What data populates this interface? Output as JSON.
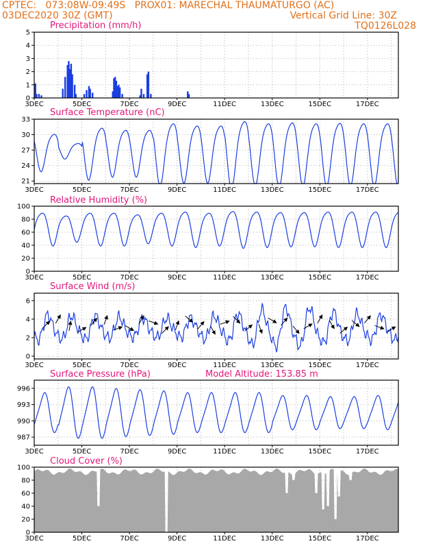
{
  "header": {
    "line1_left": "CPTEC:   073:08W-09:49S   PROX01: MARECHAL THAUMATURGO (AC)",
    "line2_left": "03DEC2020 30Z (GMT)",
    "line2_right": "Vertical Grid Line: 30Z",
    "line3_right": "TQ0126L028"
  },
  "x_tick_labels": [
    "3DEC",
    "5DEC",
    "7DEC",
    "9DEC",
    "11DEC",
    "13DEC",
    "15DEC",
    "17DEC"
  ],
  "chart_data": [
    {
      "type": "bar",
      "title": "Precipitation (mm/h)",
      "ylim": [
        0,
        5
      ],
      "yticks": [
        0,
        1,
        2,
        3,
        4,
        5
      ],
      "color": "#1a3ee0",
      "x_days": [
        0.05,
        0.1,
        0.2,
        0.3,
        1.2,
        1.3,
        1.4,
        1.45,
        1.5,
        1.55,
        1.6,
        1.7,
        1.75,
        2.1,
        2.2,
        2.3,
        2.35,
        2.45,
        3.3,
        3.35,
        3.4,
        3.45,
        3.5,
        3.55,
        3.6,
        3.7,
        4.45,
        4.5,
        4.6,
        4.75,
        4.8,
        4.9,
        6.45,
        6.5
      ],
      "values": [
        1.1,
        0.3,
        0.3,
        0.2,
        0.7,
        1.6,
        2.5,
        2.8,
        2.2,
        2.6,
        1.8,
        1.0,
        0.3,
        0.3,
        0.6,
        0.9,
        0.7,
        0.4,
        0.5,
        1.5,
        1.6,
        1.3,
        0.9,
        1.0,
        0.8,
        0.3,
        0.2,
        0.7,
        0.3,
        1.8,
        2.0,
        0.3,
        0.5,
        0.3
      ]
    },
    {
      "type": "line",
      "title": "Surface Temperature (nC)",
      "ylim": [
        20.5,
        33
      ],
      "yticks": [
        21,
        24,
        27,
        30,
        33
      ],
      "color": "#1a3ee0",
      "mean": 27,
      "amplitude": [
        3.6,
        1.5,
        5,
        4.5,
        4.5,
        6,
        5.5,
        5.5,
        6.5,
        6,
        6.2,
        6,
        6.1,
        6,
        6,
        6
      ],
      "phase_day": 0.55
    },
    {
      "type": "line",
      "title": "Relative Humidity (%)",
      "ylim": [
        0,
        100
      ],
      "yticks": [
        0,
        20,
        40,
        60,
        80,
        100
      ],
      "color": "#1a3ee0",
      "mean": 68,
      "amplitude": [
        25,
        20,
        25,
        25,
        22,
        25,
        27,
        25,
        28,
        27,
        26,
        26,
        27,
        27,
        27,
        27
      ],
      "phase_day": 0.05
    },
    {
      "type": "line",
      "title": "Surface Wind (m/s)",
      "ylim": [
        -0.3,
        6.8
      ],
      "yticks": [
        0,
        2,
        4,
        6
      ],
      "color": "#1a3ee0",
      "mean": 3.0,
      "amplitude": [
        1.3,
        1.2,
        1.2,
        1.1,
        1.0,
        1.0,
        1.0,
        1.2,
        1.4,
        1.8,
        2.0,
        2.0,
        1.6,
        1.4,
        1.3,
        1.3
      ],
      "phase_day": 0.35,
      "arrow_day_step": 0.5
    },
    {
      "type": "line",
      "title": "Surface Pressure (hPa)",
      "annotation": "Model Altitude: 153.85 m",
      "ylim": [
        985.5,
        997.5
      ],
      "yticks": [
        987,
        990,
        993,
        996
      ],
      "color": "#1a3ee0",
      "mean": 991.5,
      "amplitude": [
        3.5,
        4.5,
        4.5,
        4.2,
        4.0,
        3.8,
        3.5,
        3.5,
        3.5,
        3.5,
        3.0,
        3.0,
        2.8,
        2.8,
        3.0,
        3.0
      ],
      "phase_day": 0.15
    },
    {
      "type": "area",
      "title": "Cloud Cover (%)",
      "ylim": [
        0,
        100
      ],
      "yticks": [
        0,
        20,
        40,
        60,
        80,
        100
      ],
      "color": "#a8a8a8",
      "mean": 93,
      "dips": [
        {
          "day": 2.7,
          "value": 40
        },
        {
          "day": 5.55,
          "value": 0
        },
        {
          "day": 10.6,
          "value": 60
        },
        {
          "day": 10.9,
          "value": 80
        },
        {
          "day": 11.85,
          "value": 60
        },
        {
          "day": 12.15,
          "value": 35
        },
        {
          "day": 12.35,
          "value": 40
        },
        {
          "day": 12.65,
          "value": 20
        },
        {
          "day": 12.8,
          "value": 55
        },
        {
          "day": 13.3,
          "value": 80
        }
      ]
    }
  ]
}
